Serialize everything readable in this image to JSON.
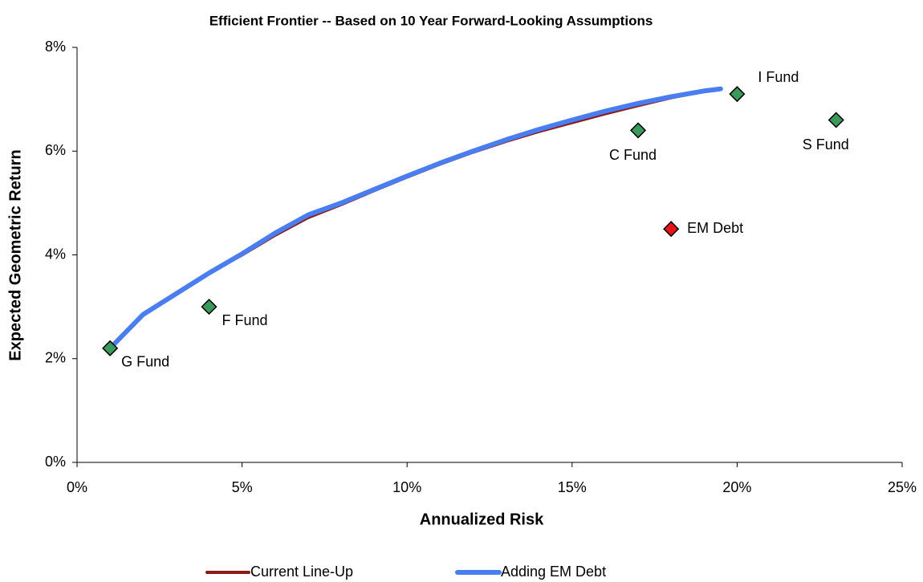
{
  "chart_data": {
    "type": "line",
    "title": "Efficient Frontier -- Based on 10 Year Forward-Looking Assumptions",
    "x_label": "Annualized Risk",
    "y_label": "Expected Geometric Return",
    "xlim": [
      0,
      25
    ],
    "xticks": [
      {
        "value": 0,
        "label": "0%"
      },
      {
        "value": 5,
        "label": "5%"
      },
      {
        "value": 10,
        "label": "10%"
      },
      {
        "value": 15,
        "label": "15%"
      },
      {
        "value": 20,
        "label": "20%"
      },
      {
        "value": 25,
        "label": "25%"
      }
    ],
    "ylim": [
      0,
      8
    ],
    "yticks": [
      {
        "value": 0,
        "label": "0%"
      },
      {
        "value": 2,
        "label": "2%"
      },
      {
        "value": 4,
        "label": "4%"
      },
      {
        "value": 6,
        "label": "6%"
      },
      {
        "value": 8,
        "label": "8%"
      }
    ],
    "legend": "bottom",
    "series": [
      {
        "name": "Current Line-Up",
        "color": "#8b1a1a",
        "width": 4,
        "x": [
          1,
          2,
          3,
          4,
          5,
          6,
          7,
          8,
          9,
          10,
          11,
          12,
          13,
          14,
          15,
          16,
          17,
          18,
          19,
          19.5
        ],
        "values": [
          2.2,
          2.85,
          3.25,
          3.65,
          4.0,
          4.38,
          4.72,
          4.97,
          5.24,
          5.5,
          5.75,
          5.98,
          6.19,
          6.38,
          6.55,
          6.72,
          6.88,
          7.03,
          7.15,
          7.2
        ]
      },
      {
        "name": "Adding EM Debt",
        "color": "#4a7ef0",
        "width": 6,
        "x": [
          1,
          2,
          3,
          4,
          5,
          6,
          7,
          8,
          9,
          10,
          11,
          12,
          13,
          14,
          15,
          16,
          17,
          18,
          19,
          19.5
        ],
        "values": [
          2.2,
          2.85,
          3.25,
          3.65,
          4.02,
          4.42,
          4.77,
          5.0,
          5.26,
          5.52,
          5.77,
          6.0,
          6.22,
          6.42,
          6.6,
          6.77,
          6.92,
          7.05,
          7.16,
          7.2
        ]
      }
    ],
    "points": {
      "labels": [
        "G Fund",
        "F Fund",
        "C Fund",
        "I Fund",
        "S Fund",
        "EM Debt"
      ],
      "x": [
        1,
        4,
        17,
        20,
        23,
        18
      ],
      "values": [
        2.2,
        3.0,
        6.4,
        7.1,
        6.6,
        4.5
      ],
      "colors": [
        "#3a9a5c",
        "#3a9a5c",
        "#3a9a5c",
        "#3a9a5c",
        "#3a9a5c",
        "#e8141a"
      ]
    }
  }
}
